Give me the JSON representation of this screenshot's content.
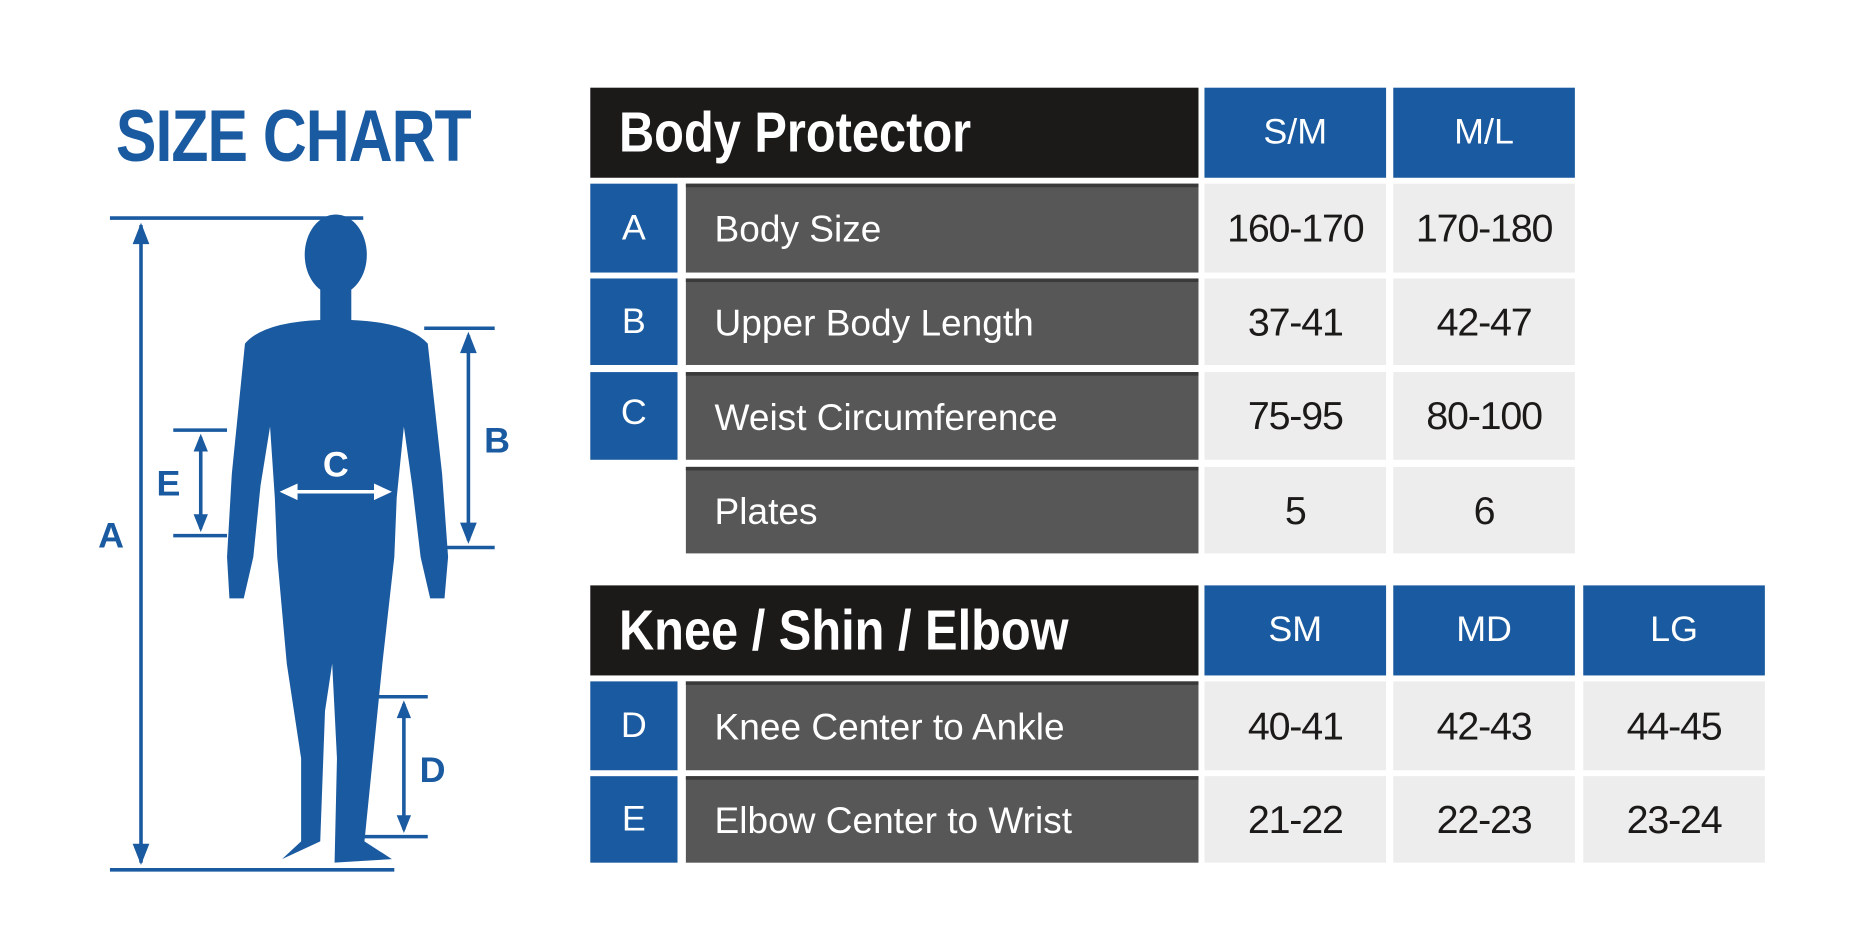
{
  "title": "SIZE CHART",
  "figure": {
    "labels": [
      "A",
      "B",
      "C",
      "D",
      "E"
    ],
    "color": "#1a5aa0"
  },
  "body_protector": {
    "title": "Body Protector",
    "sizes": [
      "S/M",
      "M/L"
    ],
    "rows": [
      {
        "letter": "A",
        "label": "Body Size",
        "values": [
          "160-170",
          "170-180"
        ]
      },
      {
        "letter": "B",
        "label": "Upper Body Length",
        "values": [
          "37-41",
          "42-47"
        ]
      },
      {
        "letter": "C",
        "label": "Weist Circumference",
        "values": [
          "75-95",
          "80-100"
        ]
      },
      {
        "letter": "",
        "label": "Plates",
        "values": [
          "5",
          "6"
        ]
      }
    ]
  },
  "knee_shin_elbow": {
    "title": "Knee / Shin / Elbow",
    "sizes": [
      "SM",
      "MD",
      "LG"
    ],
    "rows": [
      {
        "letter": "D",
        "label": "Knee Center to Ankle",
        "values": [
          "40-41",
          "42-43",
          "44-45"
        ]
      },
      {
        "letter": "E",
        "label": "Elbow Center to Wrist",
        "values": [
          "21-22",
          "22-23",
          "23-24"
        ]
      }
    ]
  },
  "colors": {
    "blue": "#1a5aa0",
    "header": "#1c1a19",
    "label_bg": "#575757",
    "value_bg": "#ededed"
  }
}
